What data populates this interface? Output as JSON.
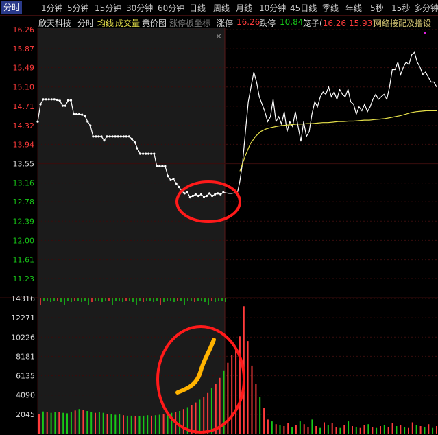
{
  "tabs": [
    "分时",
    "1分钟",
    "5分钟",
    "15分钟",
    "30分钟",
    "60分钟",
    "日线",
    "周线",
    "月线",
    "10分钟",
    "45日线",
    "季线",
    "年线",
    "5秒",
    "15秒",
    "多分钟"
  ],
  "active_tab": 0,
  "header": {
    "stock_name": "欣天科技",
    "mode": "分时",
    "avg_line_label": "均线",
    "volume_label": "成交量",
    "auction_label": "竟价图",
    "limit_coord_label": "涨停板坐标",
    "limit_up_label": "涨停",
    "limit_up_value": "16.26",
    "limit_down_label": "跌停",
    "limit_down_value": "10.84",
    "odds_prefix": "笼子(",
    "odds_high": "16.26",
    "odds_low": "15.93",
    "odds_suffix": ")",
    "concept": "网络接配及撸设"
  },
  "colors": {
    "up": "#ff3b3b",
    "down": "#18c818",
    "price_line": "#ffffff",
    "avg_line": "#e6e04a",
    "annotation_circle": "#ff1a1a",
    "annotation_arrow": "#ffb300",
    "grid": "#3a0d0d"
  },
  "chart_data": [
    {
      "type": "line",
      "title": "",
      "ylim": [
        11.23,
        16.26
      ],
      "y_tick_labels_up": [
        "16.26",
        "15.87",
        "15.49",
        "15.10",
        "14.71",
        "14.32",
        "13.94"
      ],
      "y_tick_labels_mid": "13.55",
      "y_tick_labels_down": [
        "13.16",
        "12.78",
        "12.39",
        "12.00",
        "11.61",
        "11.23"
      ],
      "series": [
        {
          "values": [
            14.4,
            14.75,
            14.85,
            14.85,
            14.85,
            14.85,
            14.85,
            14.84,
            14.82,
            14.72,
            14.72,
            14.83,
            14.83,
            14.55,
            14.55,
            14.55,
            14.54,
            14.52,
            14.4,
            14.32,
            14.1,
            14.1,
            14.1,
            14.1,
            14.02,
            14.1,
            14.1,
            14.1,
            14.1,
            14.1,
            14.1,
            14.1,
            14.1,
            14.1,
            14.05,
            13.98,
            13.86,
            13.75,
            13.75,
            13.75,
            13.75,
            13.75,
            13.75,
            13.5,
            13.5,
            13.5,
            13.5,
            13.3,
            13.22,
            13.24,
            13.15,
            13.08,
            13.0,
            12.95,
            12.97,
            12.87,
            12.9,
            12.93,
            12.9,
            12.93,
            12.88,
            12.9,
            12.95,
            12.9,
            12.93,
            12.95,
            12.93,
            12.97,
            12.96,
            12.95,
            12.95,
            12.96,
            12.94,
            13.2,
            13.6,
            14.2,
            14.8,
            15.1,
            15.4,
            15.2,
            14.9,
            14.75,
            14.6,
            14.4,
            14.5,
            14.85,
            14.4,
            14.5,
            14.35,
            14.6,
            14.2,
            14.4,
            14.3,
            14.6,
            14.3,
            14.0,
            14.4,
            14.1,
            14.2,
            14.55,
            14.8,
            14.7,
            14.9,
            15.0,
            14.95,
            15.1,
            14.9,
            15.0,
            14.85,
            15.05,
            14.95,
            14.9,
            15.05,
            14.8,
            14.75,
            14.55,
            14.7,
            14.62,
            14.75,
            14.6,
            14.7,
            14.85,
            14.95,
            14.85,
            14.9,
            14.95,
            14.85,
            15.1,
            15.45,
            15.45,
            15.6,
            15.35,
            15.5,
            15.6,
            15.55,
            15.75,
            15.8,
            15.6,
            15.5,
            15.35,
            15.4,
            15.3,
            15.2,
            15.2,
            15.1
          ]
        },
        {
          "values": [
            13.4,
            13.7,
            13.95,
            14.1,
            14.2,
            14.25,
            14.28,
            14.3,
            14.32,
            14.33,
            14.34,
            14.35,
            14.35,
            14.36,
            14.36,
            14.37,
            14.38,
            14.38,
            14.39,
            14.4,
            14.4,
            14.41,
            14.41,
            14.42,
            14.43,
            14.43,
            14.44,
            14.45,
            14.46,
            14.48,
            14.5,
            14.52,
            14.55,
            14.58,
            14.6,
            14.61,
            14.62,
            14.62,
            14.62
          ]
        }
      ]
    },
    {
      "type": "bar",
      "title": "",
      "ylim": [
        0,
        14316
      ],
      "y_tick_labels": [
        "14316",
        "12271",
        "10226",
        "8181",
        "6135",
        "4090",
        "2045"
      ],
      "values": [
        2100,
        2350,
        2250,
        2200,
        2250,
        2300,
        2200,
        2150,
        2300,
        2450,
        2600,
        2500,
        2400,
        2300,
        2200,
        2300,
        2200,
        2100,
        2050,
        2000,
        2050,
        1950,
        1900,
        1900,
        1850,
        1850,
        1900,
        1950,
        1900,
        1950,
        2000,
        2050,
        2100,
        2200,
        2300,
        2400,
        2600,
        2800,
        3000,
        3300,
        3600,
        3900,
        4300,
        4800,
        5300,
        5900,
        6700,
        7500,
        8300,
        9000,
        10300,
        13500,
        9800,
        7200,
        5300,
        3900,
        2700,
        1500,
        1300,
        1000,
        900,
        800,
        1100,
        700,
        900,
        1300,
        1000,
        700,
        1500,
        800,
        600,
        1200,
        900,
        1100,
        700,
        600,
        900,
        1300,
        800,
        700,
        600,
        900,
        1000,
        700,
        600,
        800,
        900,
        700,
        1100,
        800,
        900,
        700,
        600,
        1200,
        900,
        800,
        700,
        1000,
        600,
        800
      ],
      "up_down": [
        1,
        0,
        1,
        0,
        0,
        1,
        0,
        0,
        0,
        1,
        0,
        1,
        0,
        0,
        1,
        0,
        0,
        1,
        0,
        0,
        0,
        1,
        0,
        0,
        1,
        0,
        0,
        0,
        1,
        0,
        0,
        1,
        0,
        0,
        1,
        0,
        1,
        0,
        1,
        1,
        0,
        1,
        1,
        0,
        1,
        1,
        0,
        1,
        1,
        1,
        1,
        1,
        1,
        1,
        1,
        0,
        1,
        1,
        0,
        1,
        0,
        1,
        1,
        0,
        1,
        0,
        1,
        1,
        0,
        1,
        0,
        1,
        0,
        1,
        1,
        0,
        1,
        0,
        1,
        0,
        1,
        1,
        0,
        1,
        0,
        1,
        0,
        1,
        1,
        0,
        1,
        0,
        1,
        1,
        0,
        1,
        0,
        1,
        0,
        1
      ]
    }
  ]
}
